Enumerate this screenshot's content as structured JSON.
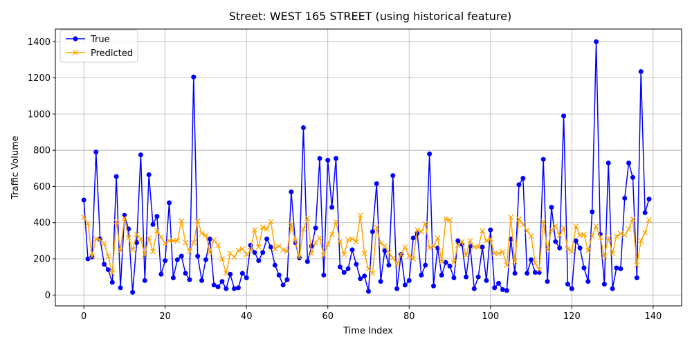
{
  "chart_data": {
    "type": "line",
    "title": "Street: WEST 165 STREET (using historical feature)",
    "xlabel": "Time Index",
    "ylabel": "Traffic Volume",
    "xlim": [
      -7,
      147
    ],
    "ylim": [
      -60,
      1470
    ],
    "xticks": [
      0,
      20,
      40,
      60,
      80,
      100,
      120,
      140
    ],
    "yticks": [
      0,
      200,
      400,
      600,
      800,
      1000,
      1200,
      1400
    ],
    "grid": true,
    "legend_position": "top-left",
    "series": [
      {
        "name": "True",
        "color": "#0000ff",
        "marker": "circle",
        "values": [
          525,
          200,
          210,
          790,
          310,
          170,
          140,
          70,
          655,
          40,
          440,
          365,
          15,
          290,
          775,
          80,
          665,
          390,
          435,
          115,
          190,
          510,
          95,
          195,
          215,
          120,
          85,
          1205,
          215,
          80,
          195,
          310,
          55,
          45,
          75,
          35,
          115,
          35,
          40,
          120,
          95,
          275,
          235,
          190,
          235,
          310,
          265,
          165,
          110,
          55,
          85,
          570,
          290,
          205,
          925,
          185,
          270,
          370,
          755,
          110,
          745,
          485,
          755,
          155,
          125,
          145,
          250,
          170,
          90,
          105,
          20,
          350,
          615,
          75,
          245,
          165,
          660,
          35,
          225,
          55,
          80,
          315,
          340,
          110,
          165,
          780,
          50,
          260,
          110,
          180,
          160,
          95,
          300,
          280,
          100,
          270,
          35,
          100,
          265,
          80,
          360,
          40,
          65,
          30,
          25,
          310,
          120,
          610,
          645,
          120,
          195,
          125,
          125,
          750,
          75,
          485,
          295,
          260,
          990,
          60,
          35,
          300,
          260,
          150,
          75,
          460,
          1400,
          335,
          60,
          730,
          35,
          150,
          145,
          535,
          730,
          650,
          95,
          1235,
          455,
          530
        ]
      },
      {
        "name": "Predicted",
        "color": "#ffa500",
        "marker": "x",
        "values": [
          430,
          395,
          215,
          310,
          305,
          285,
          215,
          120,
          405,
          245,
          425,
          315,
          250,
          335,
          310,
          225,
          315,
          240,
          355,
          320,
          285,
          300,
          300,
          300,
          410,
          290,
          240,
          290,
          410,
          340,
          330,
          235,
          305,
          275,
          200,
          120,
          230,
          210,
          245,
          255,
          225,
          245,
          360,
          265,
          375,
          365,
          405,
          255,
          270,
          250,
          240,
          390,
          300,
          210,
          365,
          425,
          230,
          290,
          315,
          220,
          280,
          335,
          405,
          295,
          225,
          305,
          310,
          295,
          440,
          230,
          145,
          120,
          375,
          285,
          270,
          235,
          205,
          170,
          225,
          265,
          215,
          200,
          360,
          350,
          395,
          260,
          270,
          315,
          185,
          420,
          415,
          180,
          275,
          295,
          220,
          300,
          265,
          265,
          355,
          300,
          310,
          230,
          230,
          240,
          165,
          430,
          185,
          420,
          390,
          355,
          325,
          175,
          140,
          405,
          250,
          360,
          380,
          330,
          370,
          255,
          240,
          380,
          330,
          335,
          245,
          325,
          380,
          320,
          215,
          315,
          230,
          325,
          340,
          330,
          365,
          420,
          165,
          300,
          345,
          415
        ]
      }
    ]
  }
}
